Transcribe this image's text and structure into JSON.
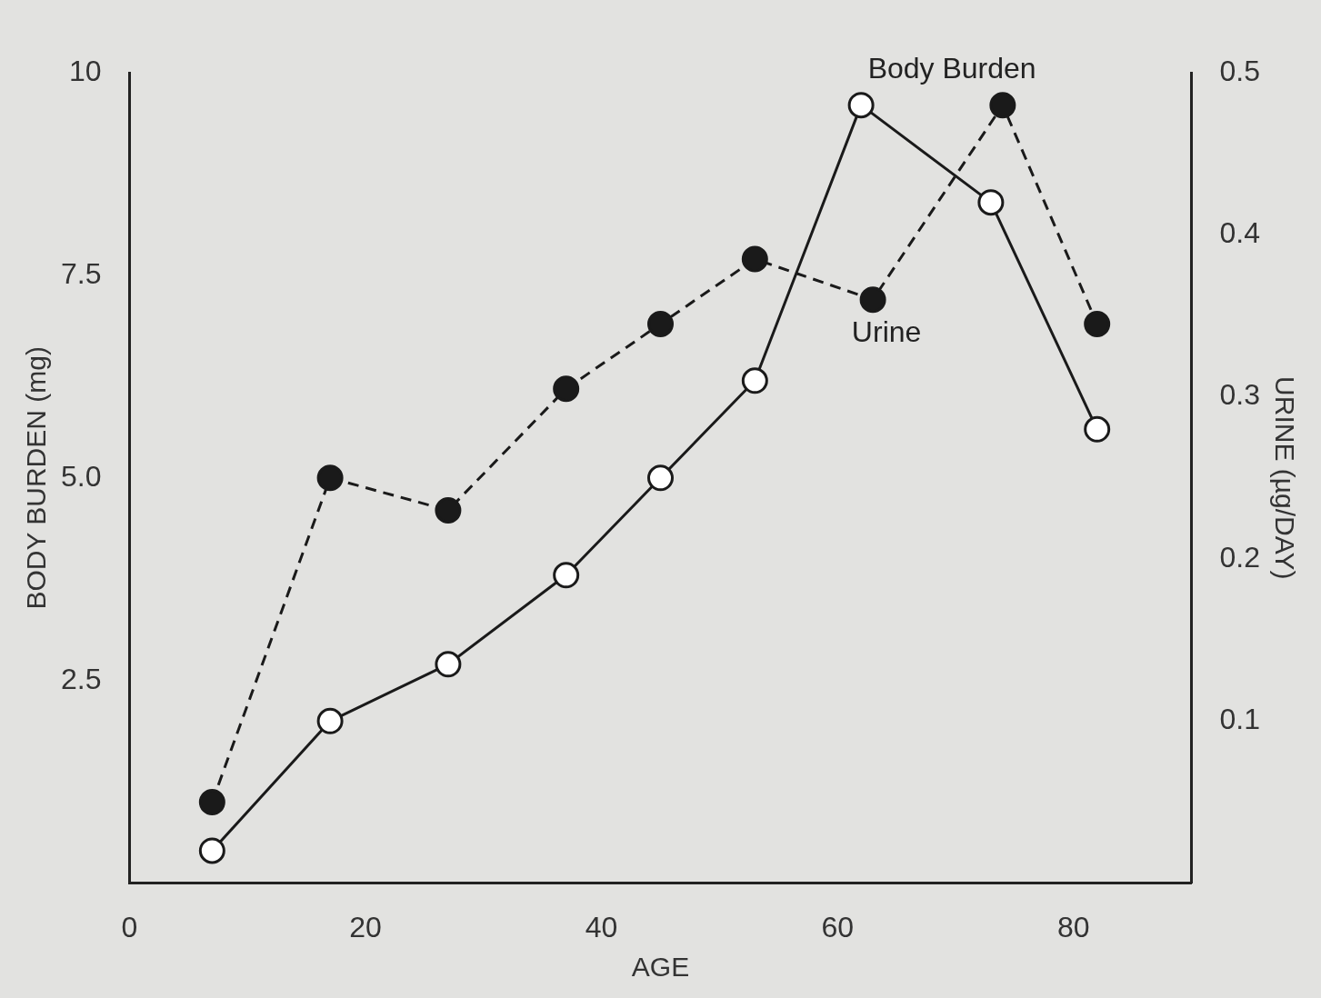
{
  "chart_data": {
    "type": "line",
    "xlabel": "AGE",
    "ylabel": "BODY BURDEN (mg)",
    "y2label": "URINE (µg/DAY)",
    "xlim": [
      0,
      90
    ],
    "xticks": [
      0,
      20,
      40,
      60,
      80
    ],
    "ylim": [
      0,
      10
    ],
    "yticks": [
      {
        "value": 2.5,
        "label": "2.5"
      },
      {
        "value": 5,
        "label": "5.0"
      },
      {
        "value": 7.5,
        "label": "7.5"
      },
      10
    ],
    "y2lim": [
      0,
      0.5
    ],
    "y2ticks": [
      0.1,
      0.2,
      0.3,
      0.4,
      0.5
    ],
    "grid": false,
    "legend": false,
    "marker": "circle",
    "series": [
      {
        "name": "Body Burden",
        "color": "#1a1a1a",
        "line_style": "solid",
        "x": [
          7,
          17,
          27,
          37,
          45,
          53,
          62,
          73,
          82
        ],
        "values": [
          0.4,
          2.0,
          2.7,
          3.8,
          5.0,
          6.2,
          9.6,
          8.4,
          5.6
        ]
      },
      {
        "name": "Urine",
        "color": "#1a1a1a",
        "line_style": "dashed",
        "axis": "y2",
        "x": [
          7,
          17,
          27,
          37,
          45,
          53,
          63,
          74,
          82
        ],
        "values": [
          0.05,
          0.25,
          0.23,
          0.305,
          0.345,
          0.385,
          0.36,
          0.48,
          0.345
        ]
      }
    ]
  }
}
